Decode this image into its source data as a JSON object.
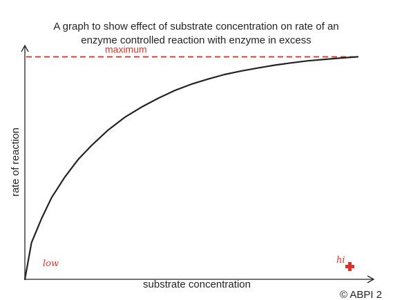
{
  "chart_data": {
    "type": "line",
    "title_line1": "A graph to show effect of substrate concentration on rate of an",
    "title_line2": "enzyme controlled reaction with enzyme in excess",
    "xlabel": "substrate concentration",
    "ylabel": "rate of reaction",
    "xlim": [
      0,
      1
    ],
    "ylim": [
      0,
      1
    ],
    "grid": false,
    "series": [
      {
        "x": [
          0,
          0.02,
          0.05,
          0.08,
          0.12,
          0.16,
          0.2,
          0.25,
          0.3,
          0.35,
          0.4,
          0.45,
          0.5,
          0.55,
          0.6,
          0.65,
          0.7,
          0.75,
          0.8,
          0.85,
          0.9,
          0.95,
          1.0
        ],
        "y": [
          0,
          0.158,
          0.262,
          0.352,
          0.441,
          0.517,
          0.577,
          0.644,
          0.699,
          0.743,
          0.781,
          0.815,
          0.842,
          0.864,
          0.884,
          0.899,
          0.912,
          0.924,
          0.934,
          0.943,
          0.949,
          0.955,
          0.96
        ],
        "color": "#222222"
      }
    ],
    "reference_line": {
      "y": 0.96,
      "label": "maximum",
      "color": "#d9342b",
      "style": "dashed"
    },
    "handwritten_annotations": [
      {
        "text": "low",
        "color": "#d9342b"
      },
      {
        "text": "hi",
        "color": "#d9342b"
      }
    ],
    "copyright": "© ABPI 2"
  }
}
